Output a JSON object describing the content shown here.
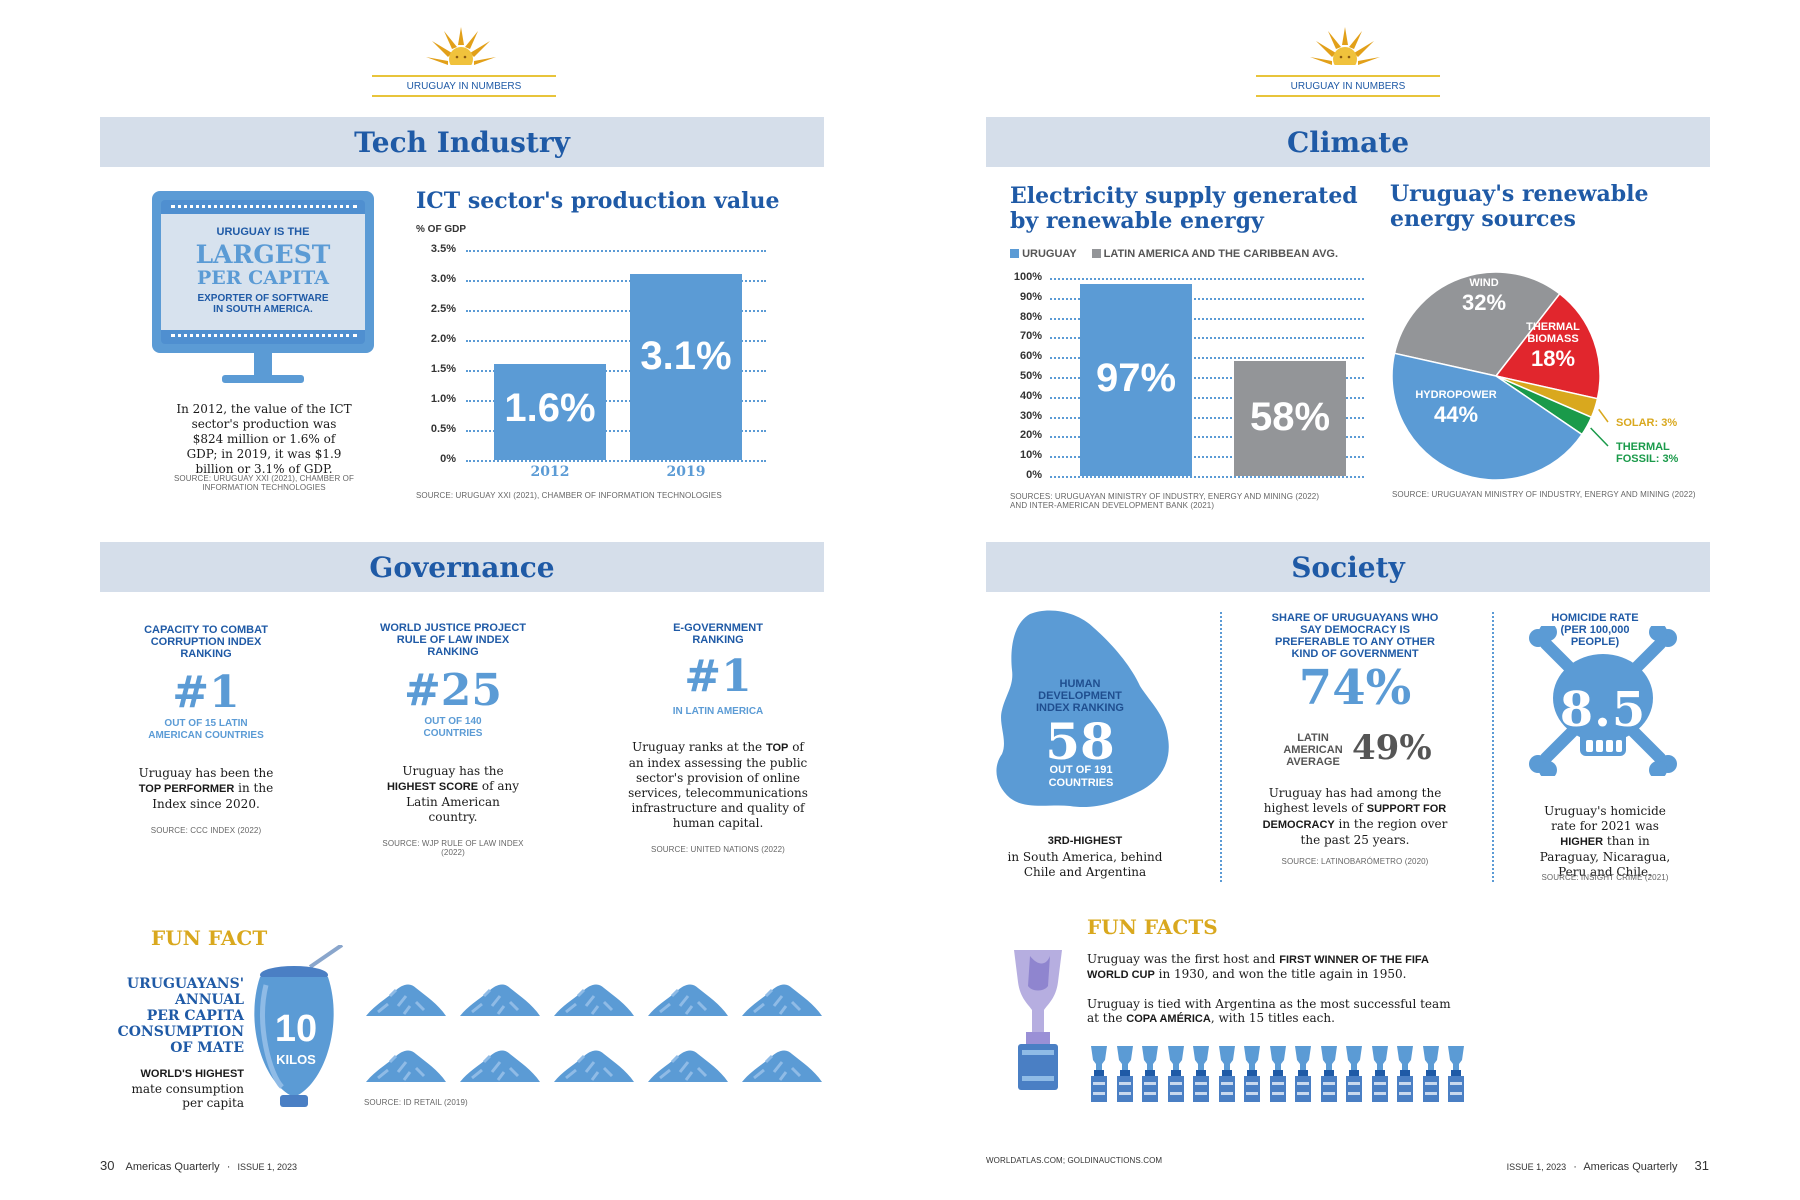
{
  "left_page": {
    "kicker": "URUGUAY IN NUMBERS",
    "tech": {
      "band_title": "Tech Industry",
      "monitor": {
        "line1": "URUGUAY IS THE",
        "line2": "LARGEST",
        "line3": "PER CAPITA",
        "line4": "EXPORTER OF SOFTWARE",
        "line5": "IN SOUTH AMERICA."
      },
      "description": "In 2012, the value of the ICT sector's production was $824 million or 1.6% of GDP; in 2019, it was $1.9 billion or 3.1% of GDP.",
      "source_left": "SOURCE: URUGUAY XXI (2021), CHAMBER OF INFORMATION TECHNOLOGIES",
      "chart_title": "ICT sector's production value",
      "chart_unit": "% OF GDP",
      "chart_source": "SOURCE: URUGUAY XXI (2021), CHAMBER OF INFORMATION TECHNOLOGIES"
    },
    "governance": {
      "band_title": "Governance",
      "items": [
        {
          "heading": "CAPACITY TO COMBAT CORRUPTION INDEX RANKING",
          "big": "#1",
          "sub": "OUT OF 15 LATIN AMERICAN COUNTRIES",
          "text_pre": "Uruguay has been the ",
          "text_bold": "TOP PERFORMER",
          "text_post": " in the Index since 2020.",
          "source": "SOURCE: CCC INDEX (2022)"
        },
        {
          "heading": "WORLD JUSTICE PROJECT RULE OF LAW INDEX RANKING",
          "big": "#25",
          "sub": "OUT OF 140 COUNTRIES",
          "text_pre": "Uruguay has the ",
          "text_bold": "HIGHEST SCORE",
          "text_post": " of any Latin American country.",
          "source": "SOURCE: WJP RULE OF LAW INDEX (2022)"
        },
        {
          "heading": "E-GOVERNMENT RANKING",
          "big": "#1",
          "sub": "IN LATIN AMERICA",
          "text_pre": "Uruguay ranks at the ",
          "text_bold": "TOP",
          "text_post": " of an index assessing the public sector's provision of online services, telecommunications infrastructure and quality of human capital.",
          "source": "SOURCE: UNITED NATIONS (2022)"
        }
      ]
    },
    "funfact": {
      "title": "FUN FACT",
      "l1": "URUGUAYANS'",
      "l2": "ANNUAL",
      "l3": "PER CAPITA",
      "l4": "CONSUMPTION",
      "l5": "OF MATE",
      "bold": "WORLD'S HIGHEST",
      "rest1": "mate consumption",
      "rest2": "per capita",
      "cup_value": "10",
      "cup_unit": "KILOS",
      "source": "SOURCE: ID RETAIL (2019)",
      "piles": 10
    },
    "footer": {
      "page": "30",
      "mag": "Americas Quarterly",
      "issue": "ISSUE 1, 2023"
    }
  },
  "right_page": {
    "kicker": "URUGUAY IN NUMBERS",
    "climate": {
      "band_title": "Climate",
      "bar_title1": "Electricity supply generated",
      "bar_title2": "by renewable energy",
      "legend_uru": "URUGUAY",
      "legend_lat": "LATIN AMERICA AND THE CARIBBEAN AVG.",
      "bar_source1": "SOURCES: URUGUAYAN MINISTRY OF INDUSTRY, ENERGY AND MINING (2022)",
      "bar_source2": "AND INTER-AMERICAN DEVELOPMENT BANK (2021)",
      "pie_title1": "Uruguay's renewable",
      "pie_title2": "energy sources",
      "pie_source": "SOURCE: URUGUAYAN MINISTRY OF INDUSTRY, ENERGY AND MINING (2022)"
    },
    "society": {
      "band_title": "Society",
      "hdi_heading": "HUMAN DEVELOPMENT INDEX RANKING",
      "hdi_value": "58",
      "hdi_sub": "OUT OF 191 COUNTRIES",
      "hdi_bold": "3RD-HIGHEST",
      "hdi_text": "in South America, behind Chile and Argentina",
      "dem_heading": "SHARE OF URUGUAYANS WHO SAY DEMOCRACY IS PREFERABLE TO ANY OTHER KIND OF GOVERNMENT",
      "dem_value": "74%",
      "dem_lat_label": "LATIN AMERICAN AVERAGE",
      "dem_lat_value": "49%",
      "dem_text_pre": "Uruguay has had among the highest levels of ",
      "dem_text_bold": "SUPPORT FOR DEMOCRACY",
      "dem_text_post": " in the region over the past 25 years.",
      "dem_source": "SOURCE: LATINOBARÓMETRO (2020)",
      "hom_heading": "HOMICIDE RATE (PER 100,000 PEOPLE)",
      "hom_value": "8.5",
      "hom_text_pre": "Uruguay's homicide rate for 2021 was ",
      "hom_text_bold": "HIGHER",
      "hom_text_post": " than in Paraguay, Nicaragua, Peru and Chile.",
      "hom_source": "SOURCE: INSIGHT CRIME (2021)"
    },
    "funfacts": {
      "title": "FUN FACTS",
      "p1_pre": "Uruguay was the first host and ",
      "p1_bold": "FIRST WINNER OF THE FIFA WORLD CUP",
      "p1_post": " in 1930, and won the title again in 1950.",
      "p2_pre": "Uruguay is tied with Argentina as the most successful team at the ",
      "p2_bold": "COPA AMÉRICA",
      "p2_post": ", with 15 titles each.",
      "trophies": 15
    },
    "credits": "WORLDATLAS.COM; GOLDINAUCTIONS.COM",
    "footer": {
      "issue": "ISSUE 1, 2023",
      "mag": "Americas Quarterly",
      "page": "31"
    }
  },
  "chart_data": [
    {
      "type": "bar",
      "title": "ICT sector's production value",
      "ylabel": "% OF GDP",
      "categories": [
        "2012",
        "2019"
      ],
      "values": [
        1.6,
        3.1
      ],
      "value_labels": [
        "1.6%",
        "3.1%"
      ],
      "yticks": [
        "3.5%",
        "3.0%",
        "2.5%",
        "2.0%",
        "1.5%",
        "1.0%",
        "0.5%",
        "0%"
      ],
      "ylim": [
        0,
        3.5
      ],
      "color": "#5b9bd5"
    },
    {
      "type": "bar",
      "title": "Electricity supply generated by renewable energy",
      "categories": [
        "URUGUAY",
        "LATIN AMERICA AND THE CARIBBEAN AVG."
      ],
      "values": [
        97,
        58
      ],
      "value_labels": [
        "97%",
        "58%"
      ],
      "colors": [
        "#5b9bd5",
        "#939598"
      ],
      "yticks": [
        "100%",
        "90%",
        "80%",
        "70%",
        "60%",
        "50%",
        "40%",
        "30%",
        "20%",
        "10%",
        "0%"
      ],
      "ylim": [
        0,
        100
      ]
    },
    {
      "type": "pie",
      "title": "Uruguay's renewable energy sources",
      "slices": [
        {
          "name": "WIND",
          "value": 32,
          "label": "32%",
          "color": "#939598"
        },
        {
          "name": "THERMAL BIOMASS",
          "value": 18,
          "label": "18%",
          "color": "#e1262d"
        },
        {
          "name": "SOLAR: 3%",
          "value": 3,
          "color": "#d9a81e"
        },
        {
          "name": "THERMAL FOSSIL: 3%",
          "value": 3,
          "color": "#1a9a4a"
        },
        {
          "name": "HYDROPOWER",
          "value": 44,
          "label": "44%",
          "color": "#5b9bd5"
        }
      ]
    }
  ]
}
